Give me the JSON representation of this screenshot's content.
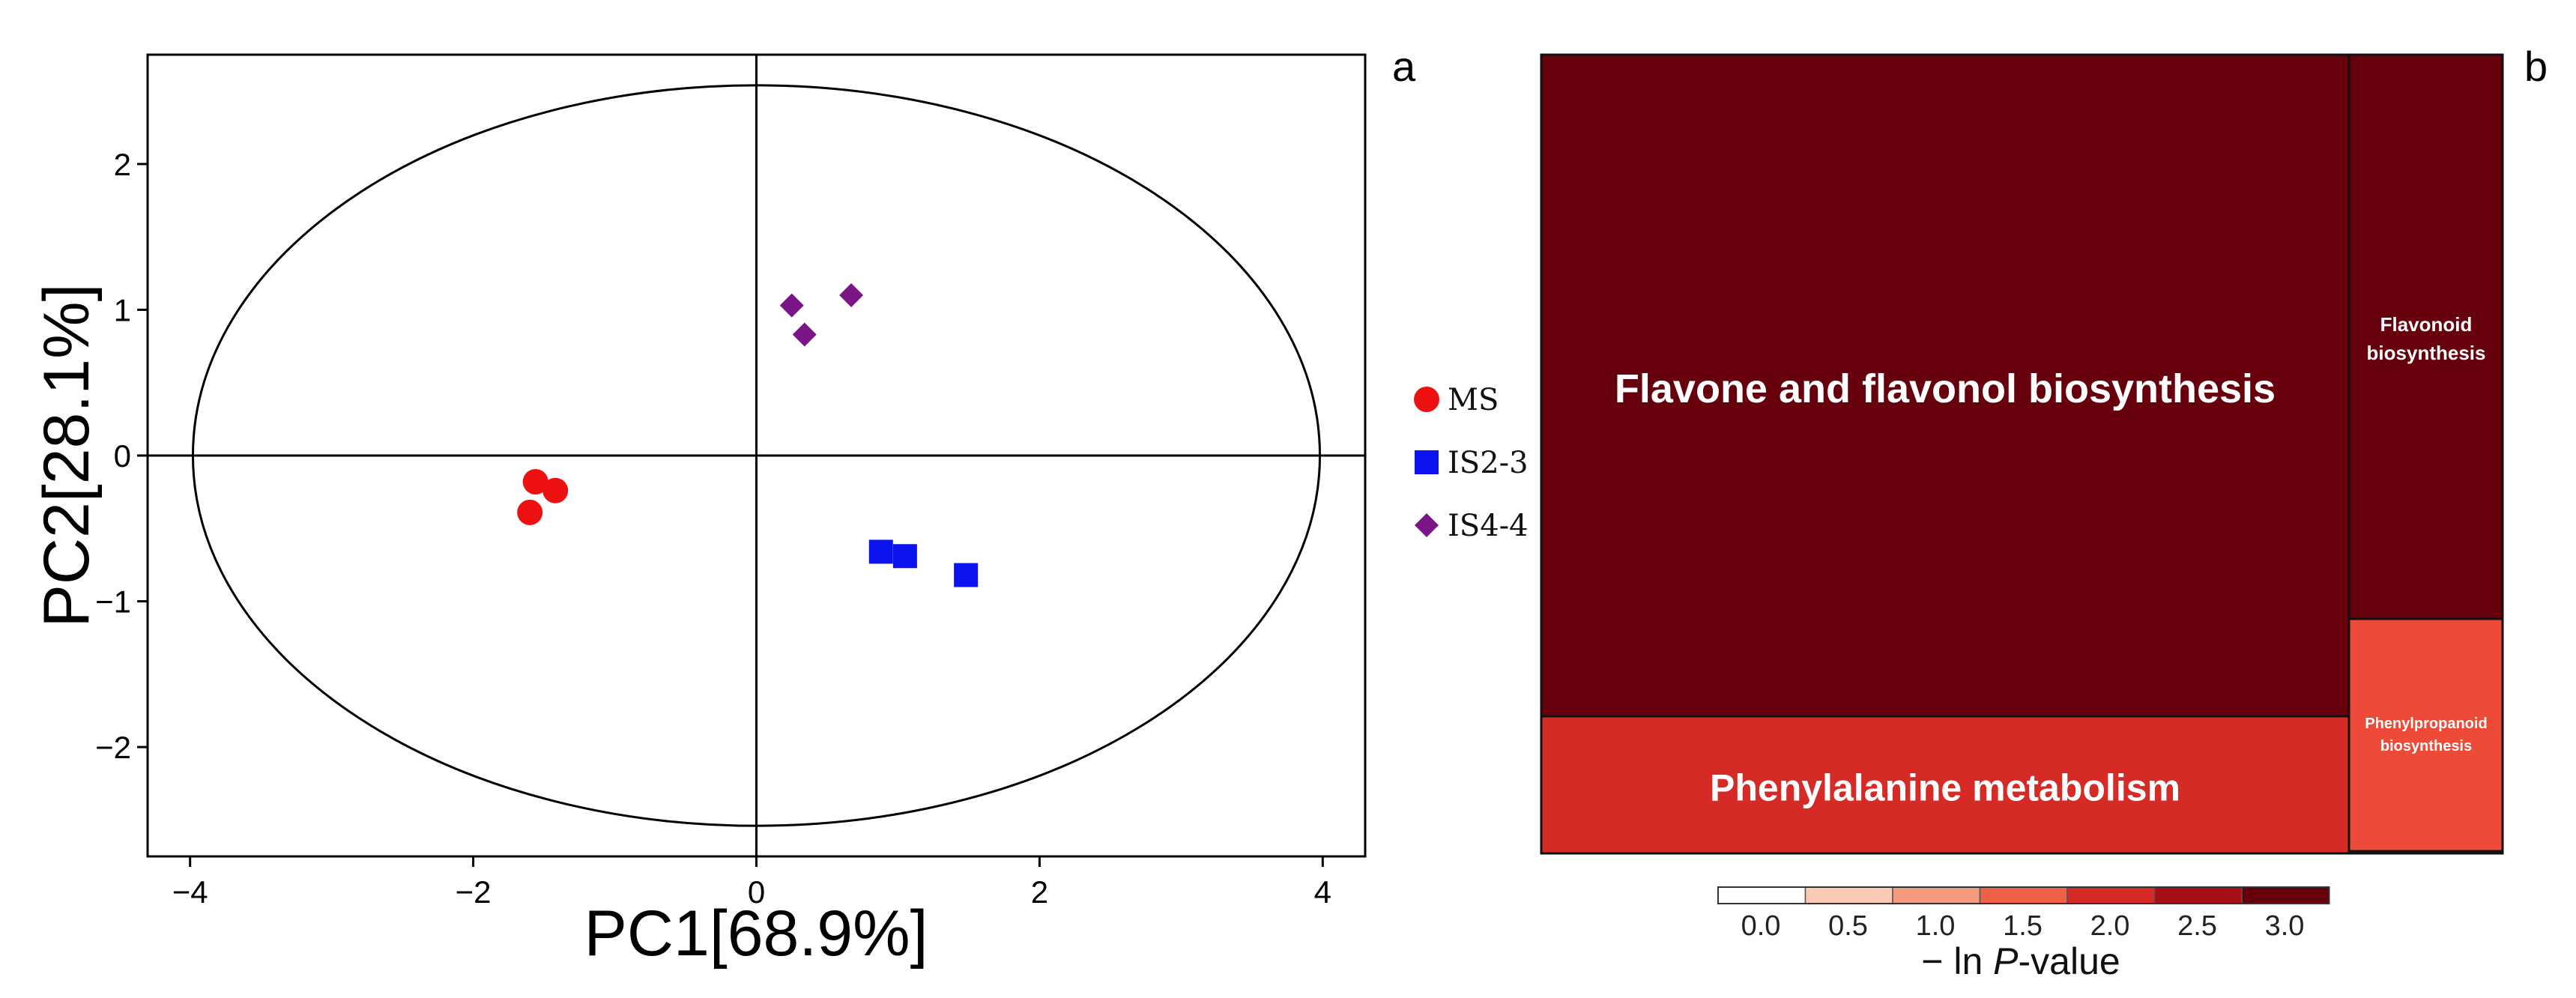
{
  "panel_labels": {
    "a": "a",
    "b": "b"
  },
  "colors": {
    "ms": "#ee1111",
    "is23": "#0b14ee",
    "is44": "#7a1586",
    "axis": "#000000"
  },
  "chart_data": [
    {
      "type": "scatter",
      "panel": "a",
      "xlabel": "PC1[68.9%]",
      "ylabel": "PC2[28.1%]",
      "xlim": [
        -4.3,
        4.3
      ],
      "ylim": [
        -2.75,
        2.75
      ],
      "xticks": [
        -4,
        -2,
        0,
        2,
        4
      ],
      "yticks": [
        -2,
        -1,
        0,
        1,
        2
      ],
      "xtick_labels": [
        "−4",
        "−2",
        "0",
        "2",
        "4"
      ],
      "ytick_labels": [
        "−2",
        "−1",
        "0",
        "1",
        "2"
      ],
      "grid": false,
      "reference_lines": {
        "x": 0,
        "y": 0
      },
      "confidence_ellipse": {
        "center": [
          0,
          0
        ],
        "semi_x": 3.98,
        "semi_y": 2.54
      },
      "legend_position": "right",
      "series": [
        {
          "name": "MS",
          "marker": "circle",
          "color": "#ee1111",
          "points": [
            [
              -1.6,
              -0.39
            ],
            [
              -1.56,
              -0.18
            ],
            [
              -1.42,
              -0.24
            ]
          ]
        },
        {
          "name": "IS2-3",
          "marker": "square",
          "color": "#0b14ee",
          "points": [
            [
              0.88,
              -0.66
            ],
            [
              1.05,
              -0.69
            ],
            [
              1.48,
              -0.82
            ]
          ]
        },
        {
          "name": "IS4-4",
          "marker": "diamond",
          "color": "#7a1586",
          "points": [
            [
              0.25,
              1.03
            ],
            [
              0.34,
              0.83
            ],
            [
              0.67,
              1.1
            ]
          ]
        }
      ]
    },
    {
      "type": "heatmap",
      "subtype": "treemap",
      "panel": "b",
      "items": [
        {
          "label": "Flavone and flavonol biosynthesis",
          "lines": [
            "Flavone and flavonol biosynthesis"
          ],
          "value": 3.0,
          "color": "#67000d",
          "size": "large"
        },
        {
          "label": "Phenylalanine metabolism",
          "lines": [
            "Phenylalanine metabolism"
          ],
          "value": 2.0,
          "color": "#d62a27",
          "size": "medium"
        },
        {
          "label": "Flavonoid biosynthesis",
          "lines": [
            "Flavonoid",
            "biosynthesis"
          ],
          "value": 3.0,
          "color": "#67000d",
          "size": "small"
        },
        {
          "label": "Phenylpropanoid biosynthesis",
          "lines": [
            "Phenylpropanoid",
            "biosynthesis"
          ],
          "value": 1.6,
          "color": "#ee4a38",
          "size": "tiny"
        }
      ],
      "colorbar": {
        "title_prefix": "− ln ",
        "title_italic": "P",
        "title_suffix": "-value",
        "tick_labels": [
          "0.0",
          "0.5",
          "1.0",
          "1.5",
          "2.0",
          "2.5",
          "3.0"
        ],
        "colors": [
          "#ffffff",
          "#fbcab4",
          "#f39b7f",
          "#ee6147",
          "#d62a27",
          "#a50f15",
          "#67000d"
        ]
      }
    }
  ]
}
